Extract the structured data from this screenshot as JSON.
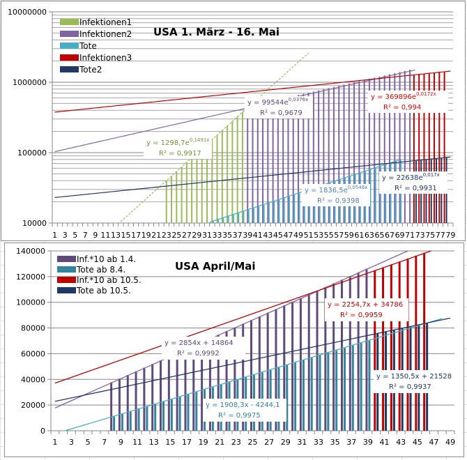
{
  "chart_data": [
    {
      "type": "bar",
      "title": "USA  1. März - 16. Mai",
      "yscale": "log",
      "ylim": [
        10000,
        10000000
      ],
      "yticks": [
        "10000",
        "100000",
        "1000000",
        "10000000"
      ],
      "x": {
        "min": 1,
        "max": 79,
        "label_step": 2
      },
      "grid": true,
      "legend_position": "top-left",
      "series": [
        {
          "name": "Infektionen1",
          "color": "#9bbb59",
          "start": 23,
          "end": 38,
          "fit": {
            "a": 1298.7,
            "b": 0.1491,
            "from": 14,
            "to": 51
          }
        },
        {
          "name": "Infektionen2",
          "color": "#8064a2",
          "start": 39,
          "end": 71,
          "fit": {
            "a": 99544,
            "b": 0.0376,
            "from": 1,
            "to": 72
          }
        },
        {
          "name": "Tote",
          "color": "#4bacc6",
          "start": 31,
          "end": 69,
          "fit": {
            "a": 1836.5,
            "b": 0.0546,
            "from": 31,
            "to": 69
          }
        },
        {
          "name": "Infektionen3",
          "color": "#c00000",
          "start": 72,
          "end": 78,
          "fit": {
            "a": 369896,
            "b": 0.0172,
            "from": 1,
            "to": 79
          }
        },
        {
          "name": "Tote2",
          "color": "#1f3864",
          "start": 72,
          "end": 78,
          "fit": {
            "a": 22638,
            "b": 0.017,
            "from": 1,
            "to": 79
          }
        }
      ],
      "annotations": [
        {
          "series": "Infektionen1",
          "eq_main": "y = 1298,7e",
          "eq_exp": "0,1491x",
          "r2": "R² = 0,9917",
          "color": "#77933c"
        },
        {
          "series": "Infektionen2",
          "eq_main": "y = 99544e",
          "eq_exp": "0,0376x",
          "r2": "R² = 0,9679",
          "color": "#5f497a"
        },
        {
          "series": "Infektionen3",
          "eq_main": "y = 369896e",
          "eq_exp": "0,0172x",
          "r2": "R² = 0,994",
          "color": "#e00000"
        },
        {
          "series": "Tote",
          "eq_main": "y = 1836,5e",
          "eq_exp": "0,0546x",
          "r2": "R² = 0,9398",
          "color": "#4f81bd"
        },
        {
          "series": "Tote2",
          "eq_main": "y = 22638e",
          "eq_exp": "0,017x",
          "r2": "R² = 0,9931",
          "color": "#1f3864"
        }
      ]
    },
    {
      "type": "bar",
      "title": "USA April/Mai",
      "yscale": "linear",
      "ylim": [
        0,
        140000
      ],
      "yticks": [
        "0",
        "20000",
        "40000",
        "60000",
        "80000",
        "100000",
        "120000",
        "140000"
      ],
      "x": {
        "min": 1,
        "max": 49,
        "label_step": 2
      },
      "grid": true,
      "legend_position": "top-left",
      "series": [
        {
          "name": "Inf.*10 ab 1.4.",
          "color": "#604a7b",
          "start": 8,
          "end": 39,
          "fit": {
            "m": 2854,
            "c": 14864,
            "from": 1,
            "to": 48
          }
        },
        {
          "name": "Tote ab 8.4.",
          "color": "#31859c",
          "start": 8,
          "end": 39,
          "fit": {
            "m": 1908.3,
            "c": -4244.1,
            "from": 2,
            "to": 48
          }
        },
        {
          "name": "Inf.*10 ab 10.5.",
          "color": "#c00000",
          "start": 40,
          "end": 46,
          "fit": {
            "m": 2254.7,
            "c": 34786,
            "from": 1,
            "to": 47
          }
        },
        {
          "name": "Tote ab 10.5.",
          "color": "#1f3864",
          "start": 40,
          "end": 46,
          "fit": {
            "m": 1350.5,
            "c": 21528,
            "from": 1,
            "to": 49
          }
        }
      ],
      "annotations": [
        {
          "series": "Inf.*10 ab 1.4.",
          "eq": "y = 2854x + 14864",
          "r2": "R² = 0,9992",
          "color": "#5f497a"
        },
        {
          "series": "Inf.*10 ab 10.5.",
          "eq": "y = 2254,7x + 34786",
          "r2": "R² = 0,9959",
          "color": "#c00000"
        },
        {
          "series": "Tote ab 8.4.",
          "eq": "y = 1908,3x - 4244,1",
          "r2": "R² = 0,9975",
          "color": "#31859c"
        },
        {
          "series": "Tote ab 10.5.",
          "eq": "y = 1350,5x + 21528",
          "r2": "R² = 0,9937",
          "color": "#1f3864"
        }
      ]
    }
  ]
}
